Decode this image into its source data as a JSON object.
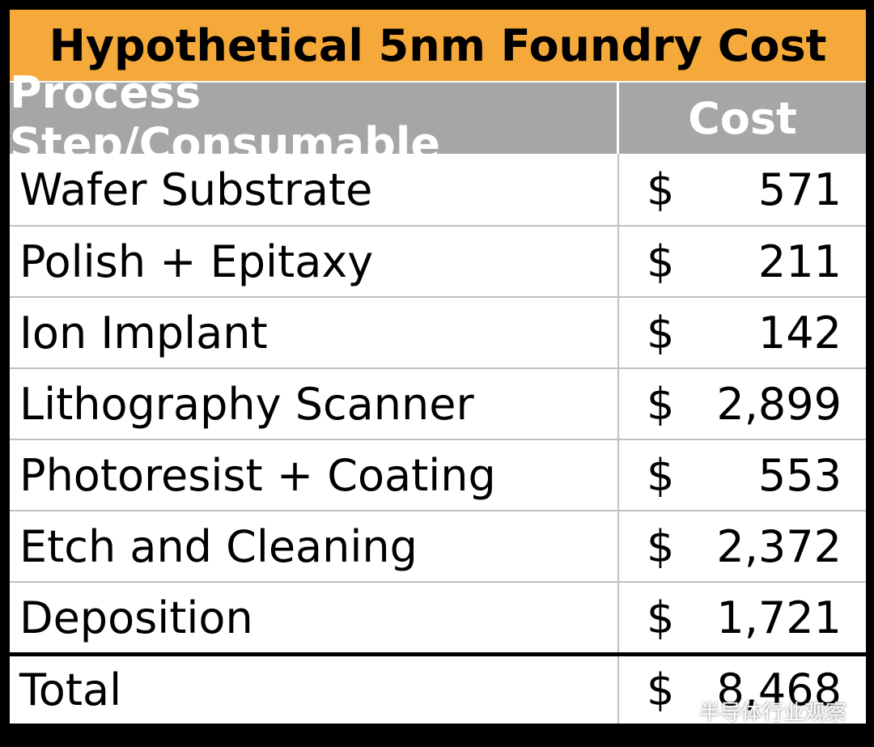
{
  "table": {
    "title": "Hypothetical 5nm Foundry Cost",
    "header": {
      "step": "Process Step/Consumable",
      "cost": "Cost"
    },
    "currency": "$",
    "rows": [
      {
        "step": "Wafer Substrate",
        "cost": "571"
      },
      {
        "step": "Polish + Epitaxy",
        "cost": "211"
      },
      {
        "step": "Ion Implant",
        "cost": "142"
      },
      {
        "step": "Lithography Scanner",
        "cost": "2,899"
      },
      {
        "step": "Photoresist + Coating",
        "cost": "553"
      },
      {
        "step": "Etch and Cleaning",
        "cost": "2,372"
      },
      {
        "step": "Deposition",
        "cost": "1,721"
      }
    ],
    "total": {
      "step": "Total",
      "cost": "8,468"
    }
  },
  "watermark": {
    "text": "半导体行业观察",
    "icon": "wechat-icon"
  },
  "colors": {
    "title_bg": "#f6a93b",
    "header_bg": "#a6a6a6",
    "frame": "#000000"
  }
}
